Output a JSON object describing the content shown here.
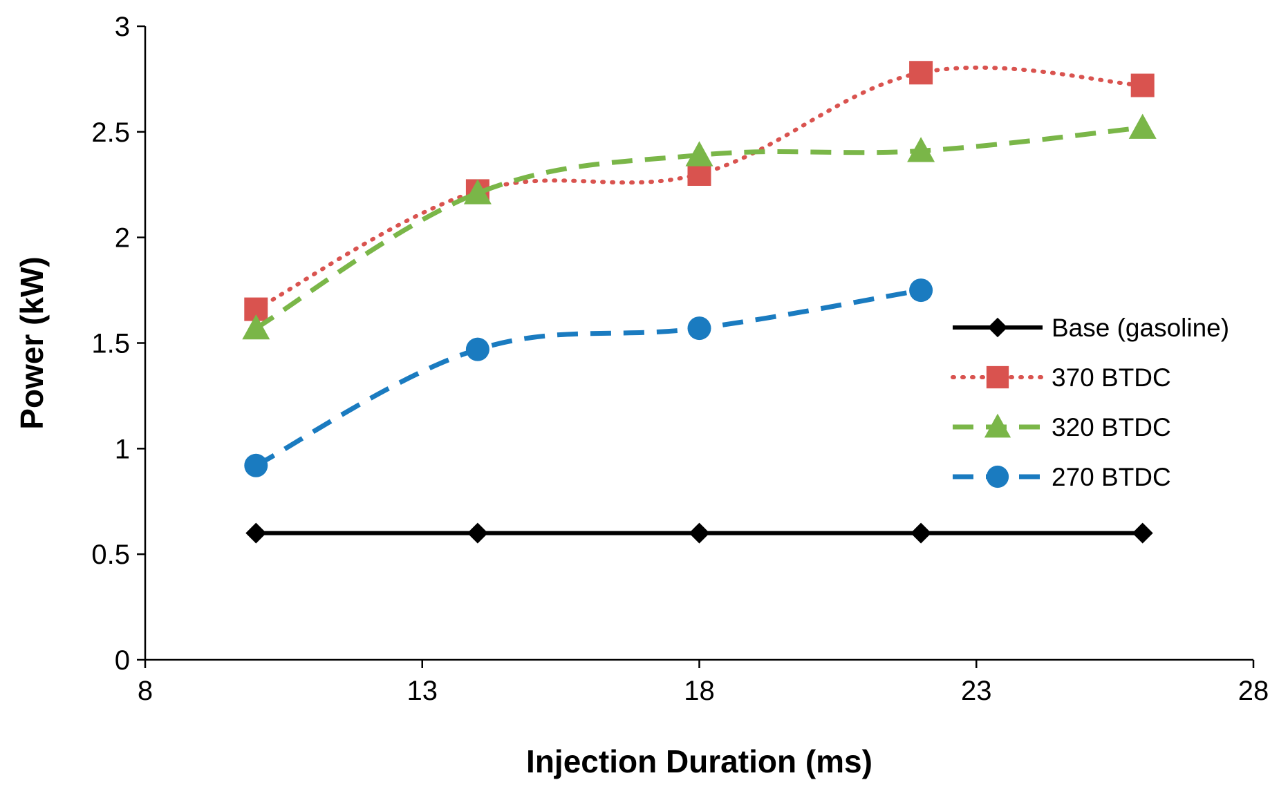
{
  "chart_data": {
    "type": "line",
    "title": "",
    "xlabel": "Injection Duration (ms)",
    "ylabel": "Power (kW)",
    "xlim": [
      8,
      28
    ],
    "ylim": [
      0,
      3
    ],
    "xticks": [
      8,
      13,
      18,
      23,
      28
    ],
    "yticks": [
      0,
      0.5,
      1,
      1.5,
      2,
      2.5,
      3
    ],
    "xtick_labels": [
      "8",
      "13",
      "18",
      "23",
      "28"
    ],
    "ytick_labels": [
      "0",
      "0.5",
      "1",
      "1.5",
      "2",
      "2.5",
      "3"
    ],
    "grid": false,
    "legend_position": "right",
    "series": [
      {
        "name": "Base (gasoline)",
        "x": [
          10,
          14,
          18,
          22,
          26
        ],
        "values": [
          0.6,
          0.6,
          0.6,
          0.6,
          0.6
        ],
        "color": "#000000",
        "line_style": "solid",
        "marker": "diamond",
        "smooth": false
      },
      {
        "name": "370 BTDC",
        "x": [
          10,
          14,
          18,
          22,
          26
        ],
        "values": [
          1.66,
          2.22,
          2.3,
          2.78,
          2.72
        ],
        "color": "#d9534f",
        "line_style": "dotted",
        "marker": "square",
        "smooth": true
      },
      {
        "name": "320 BTDC",
        "x": [
          10,
          14,
          18,
          22,
          26
        ],
        "values": [
          1.57,
          2.21,
          2.39,
          2.41,
          2.52
        ],
        "color": "#7ab648",
        "line_style": "dashed",
        "marker": "triangle",
        "smooth": true
      },
      {
        "name": "270 BTDC",
        "x": [
          10,
          14,
          18,
          22
        ],
        "values": [
          0.92,
          1.47,
          1.57,
          1.75
        ],
        "color": "#1a7bc0",
        "line_style": "dashed",
        "marker": "circle",
        "smooth": true
      }
    ]
  }
}
